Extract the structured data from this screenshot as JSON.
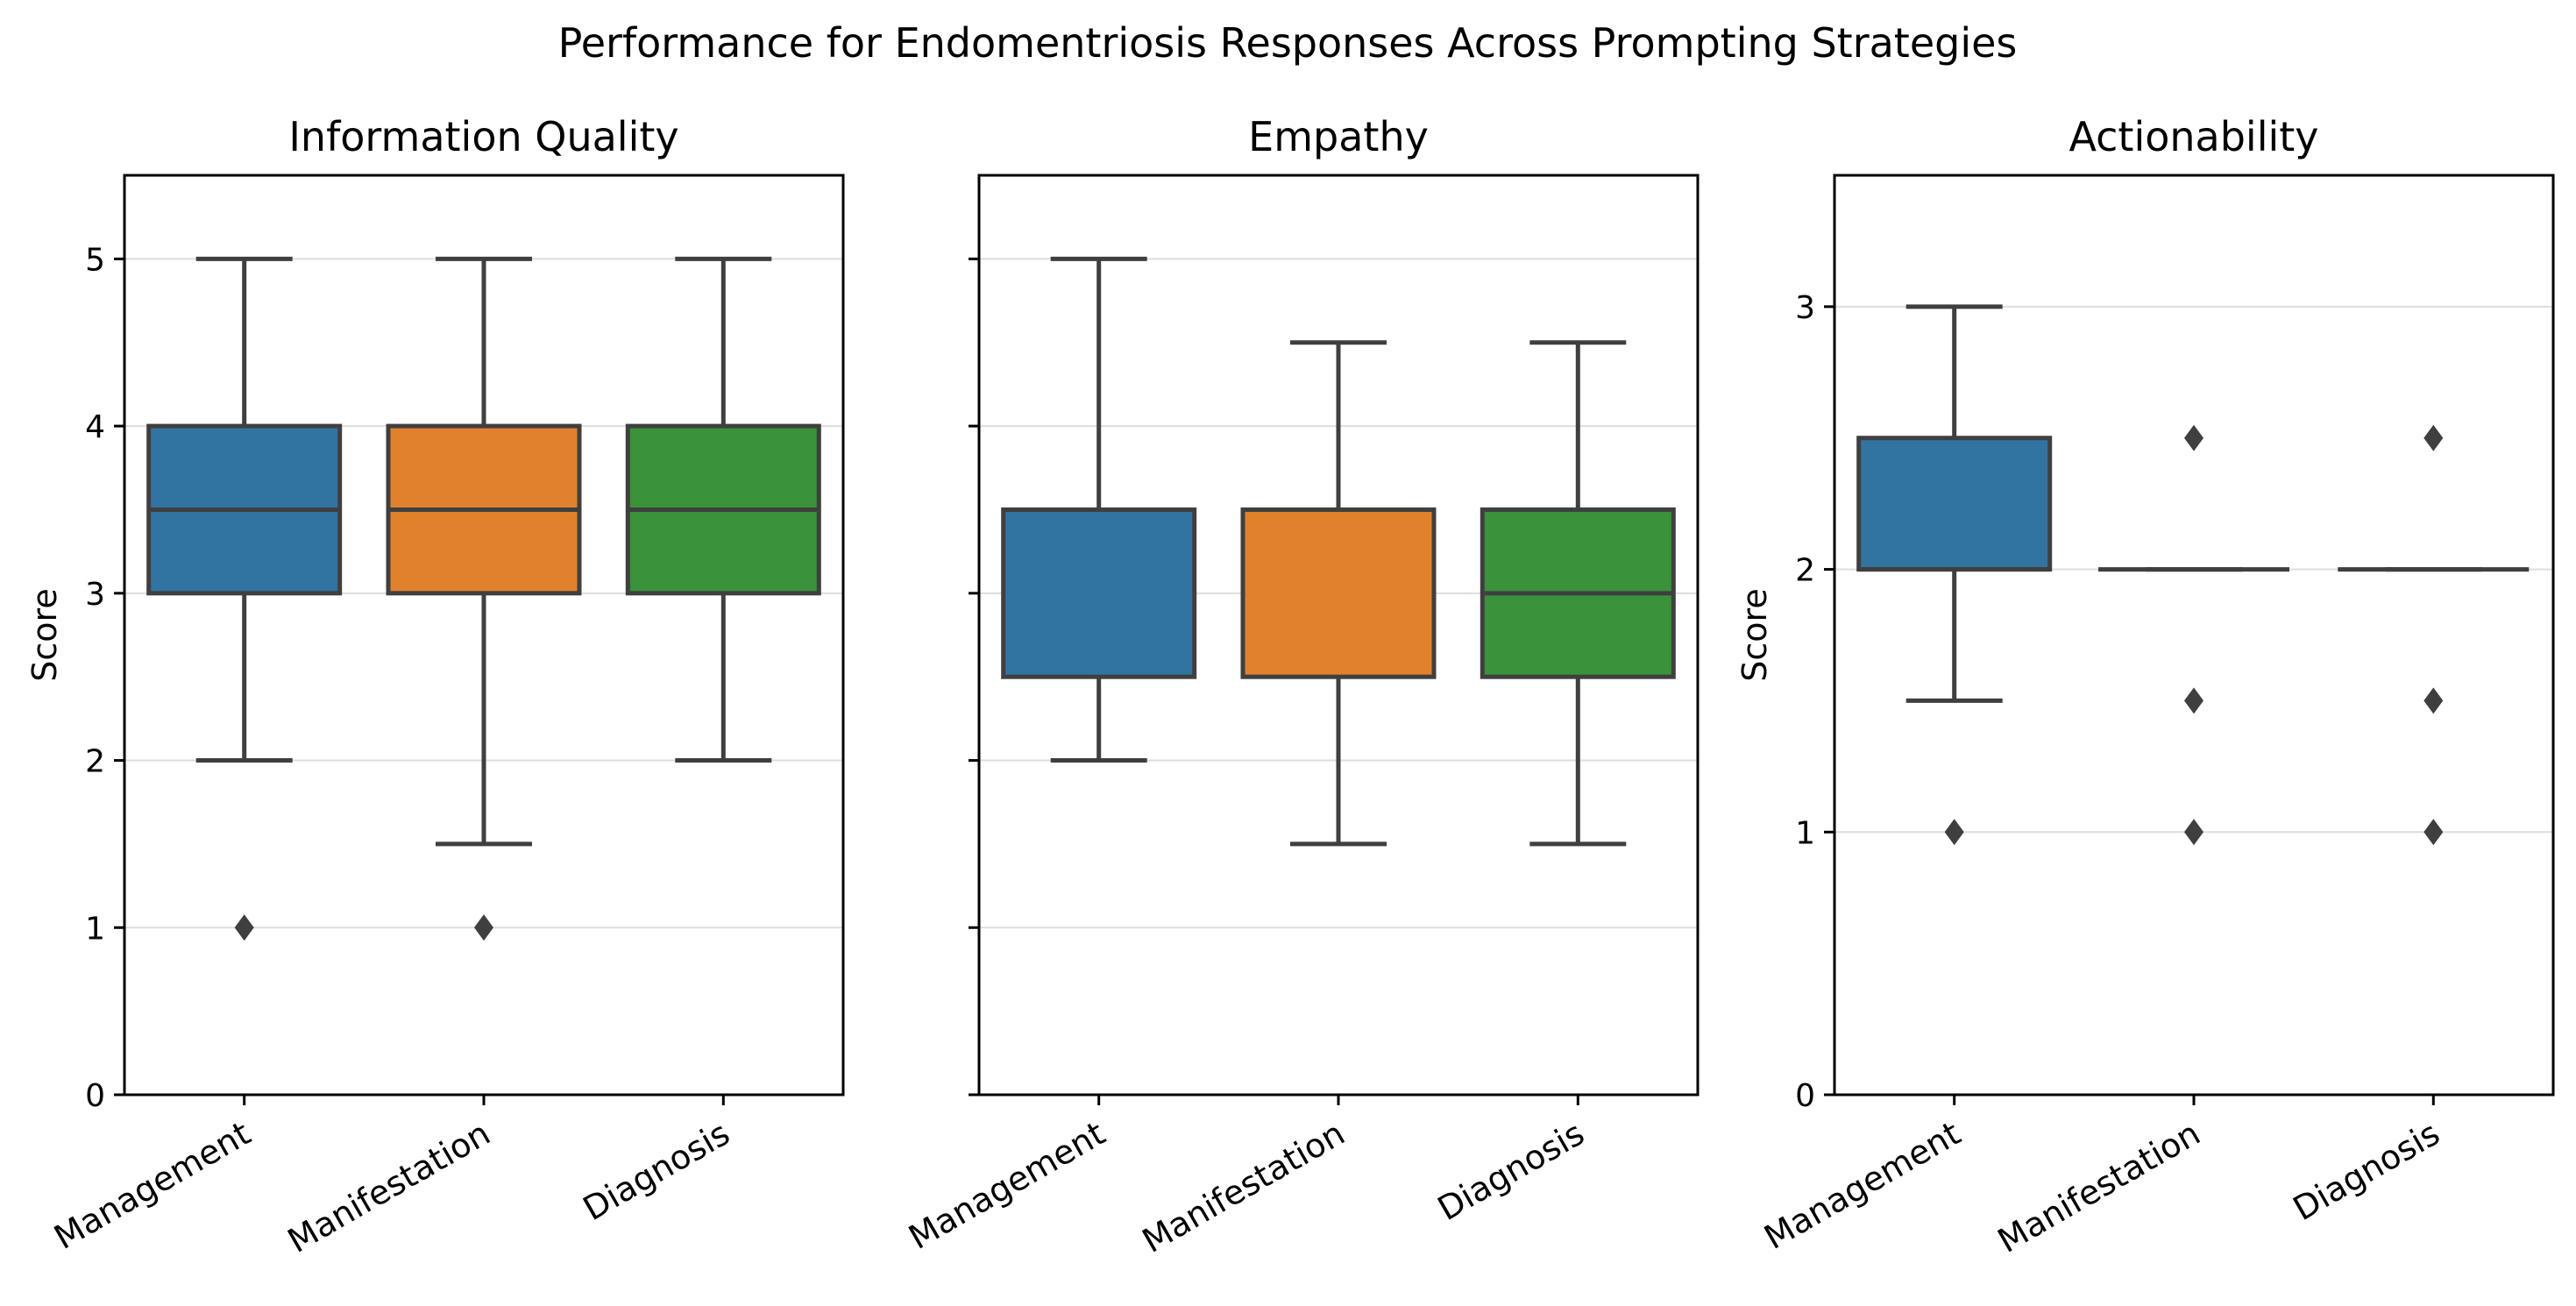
{
  "chart_data": {
    "type": "box",
    "title": "Performance for Endomentriosis Responses Across Prompting Strategies",
    "categories": [
      "Management",
      "Manifestation",
      "Diagnosis"
    ],
    "colors": [
      "#3274a1",
      "#e1812c",
      "#3a923a"
    ],
    "line_color": "#3f3f3f",
    "grid": true,
    "panels": [
      {
        "title": "Information Quality",
        "ylabel": "Score",
        "ylim": [
          0,
          5.5
        ],
        "yticks": [
          "0",
          "1",
          "2",
          "3",
          "4",
          "5"
        ],
        "show_yticks": true,
        "boxes": [
          {
            "category": "Management",
            "whislo": 2,
            "q1": 3,
            "med": 3.5,
            "q3": 4,
            "whishi": 5,
            "fliers": [
              1
            ]
          },
          {
            "category": "Manifestation",
            "whislo": 1.5,
            "q1": 3,
            "med": 3.5,
            "q3": 4,
            "whishi": 5,
            "fliers": [
              1
            ]
          },
          {
            "category": "Diagnosis",
            "whislo": 2,
            "q1": 3,
            "med": 3.5,
            "q3": 4,
            "whishi": 5,
            "fliers": []
          }
        ]
      },
      {
        "title": "Empathy",
        "ylabel": "",
        "ylim": [
          0,
          5.5
        ],
        "yticks": [
          "0",
          "1",
          "2",
          "3",
          "4",
          "5"
        ],
        "show_yticks": false,
        "boxes": [
          {
            "category": "Management",
            "whislo": 2,
            "q1": 2.5,
            "med": 3.5,
            "q3": 3.5,
            "whishi": 5,
            "fliers": []
          },
          {
            "category": "Manifestation",
            "whislo": 1.5,
            "q1": 2.5,
            "med": 3.5,
            "q3": 3.5,
            "whishi": 4.5,
            "fliers": []
          },
          {
            "category": "Diagnosis",
            "whislo": 1.5,
            "q1": 2.5,
            "med": 3,
            "q3": 3.5,
            "whishi": 4.5,
            "fliers": []
          }
        ]
      },
      {
        "title": "Actionability",
        "ylabel": "Score",
        "ylim": [
          0,
          3.5
        ],
        "yticks": [
          "0",
          "1",
          "2",
          "3"
        ],
        "show_yticks": true,
        "boxes": [
          {
            "category": "Management",
            "whislo": 1.5,
            "q1": 2,
            "med": 2,
            "q3": 2.5,
            "whishi": 3,
            "fliers": [
              1
            ]
          },
          {
            "category": "Manifestation",
            "whislo": 2,
            "q1": 2,
            "med": 2,
            "q3": 2,
            "whishi": 2,
            "fliers": [
              1,
              1.5,
              2.5
            ]
          },
          {
            "category": "Diagnosis",
            "whislo": 2,
            "q1": 2,
            "med": 2,
            "q3": 2,
            "whishi": 2,
            "fliers": [
              1,
              1.5,
              2.5
            ]
          }
        ]
      }
    ]
  }
}
